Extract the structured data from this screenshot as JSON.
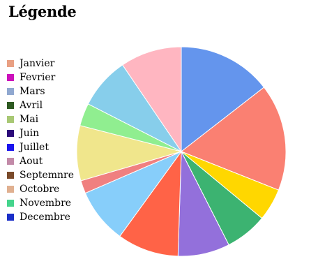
{
  "chart_data": {
    "type": "pie",
    "title": "Légende",
    "legend_position": "left",
    "categories": [
      "Janvier",
      "Fevrier",
      "Mars",
      "Avril",
      "Mai",
      "Juin",
      "Juillet",
      "Aout",
      "Septemnre",
      "Octobre",
      "Novembre",
      "Decembre"
    ],
    "legend_colors": [
      "#e9a083",
      "#cc11bb",
      "#90a8d0",
      "#2e5a22",
      "#a8c874",
      "#2c0a7a",
      "#1a14ee",
      "#c28aa8",
      "#7a4a2a",
      "#e0b090",
      "#44d48c",
      "#1a2ec8"
    ],
    "slices": [
      {
        "value": 14.5,
        "color": "#6495ed"
      },
      {
        "value": 16.5,
        "color": "#fa8072"
      },
      {
        "value": 5.0,
        "color": "#ffd700"
      },
      {
        "value": 6.5,
        "color": "#3cb371"
      },
      {
        "value": 8.0,
        "color": "#9370db"
      },
      {
        "value": 9.5,
        "color": "#ff6347"
      },
      {
        "value": 8.5,
        "color": "#87cefa"
      },
      {
        "value": 2.0,
        "color": "#f08080"
      },
      {
        "value": 8.5,
        "color": "#f0e68c"
      },
      {
        "value": 3.5,
        "color": "#90ee90"
      },
      {
        "value": 8.0,
        "color": "#87ceeb"
      },
      {
        "value": 9.5,
        "color": "#ffb6c1"
      }
    ]
  }
}
